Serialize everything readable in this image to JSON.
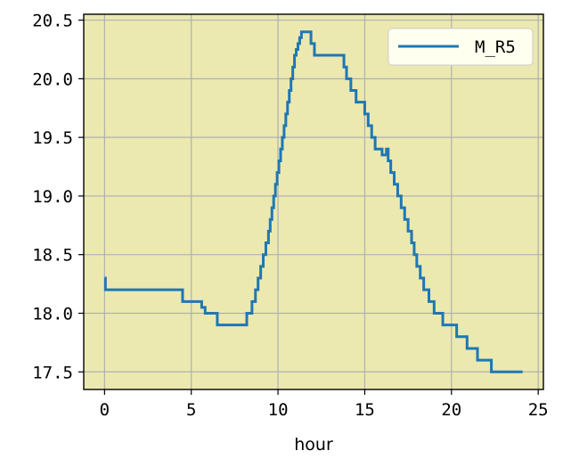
{
  "colors": {
    "plot_background": "#ebe9b0",
    "grid": "#b0b0b0",
    "line": "#1f77b4",
    "legend_background": "#fffff0"
  },
  "chart_data": {
    "type": "line",
    "title": "",
    "xlabel": "hour",
    "ylabel": "",
    "xlim": [
      -1.2,
      25.3
    ],
    "ylim": [
      17.35,
      20.55
    ],
    "xticks": [
      0,
      5,
      10,
      15,
      20,
      25
    ],
    "yticks": [
      17.5,
      18.0,
      18.5,
      19.0,
      19.5,
      20.0,
      20.5
    ],
    "ytick_labels": [
      "17.5",
      "18.0",
      "18.5",
      "19.0",
      "19.5",
      "20.0",
      "20.5"
    ],
    "grid": true,
    "legend_position": "top-right",
    "series": [
      {
        "name": "M_R5",
        "step": "post",
        "x": [
          0.0,
          0.05,
          0.15,
          4.5,
          5.6,
          5.8,
          6.5,
          8.2,
          8.5,
          8.7,
          8.85,
          9.0,
          9.15,
          9.3,
          9.45,
          9.55,
          9.65,
          9.75,
          9.85,
          9.95,
          10.05,
          10.15,
          10.25,
          10.35,
          10.45,
          10.55,
          10.65,
          10.75,
          10.85,
          10.95,
          11.05,
          11.15,
          11.25,
          11.35,
          11.5,
          11.9,
          12.1,
          13.8,
          13.95,
          14.2,
          14.5,
          15.0,
          15.2,
          15.4,
          15.6,
          16.0,
          16.25,
          16.35,
          16.5,
          16.7,
          16.9,
          17.1,
          17.3,
          17.5,
          17.7,
          17.85,
          18.0,
          18.2,
          18.4,
          18.7,
          19.0,
          19.5,
          20.3,
          20.9,
          21.5,
          22.3,
          23.2,
          24.1
        ],
        "values": [
          18.3,
          18.2,
          18.2,
          18.1,
          18.05,
          18.0,
          17.9,
          18.0,
          18.1,
          18.2,
          18.3,
          18.4,
          18.5,
          18.6,
          18.7,
          18.8,
          18.9,
          19.0,
          19.1,
          19.2,
          19.3,
          19.4,
          19.5,
          19.6,
          19.7,
          19.8,
          19.9,
          20.0,
          20.1,
          20.2,
          20.25,
          20.3,
          20.35,
          20.4,
          20.4,
          20.3,
          20.2,
          20.1,
          20.0,
          19.9,
          19.8,
          19.7,
          19.6,
          19.5,
          19.4,
          19.35,
          19.4,
          19.3,
          19.2,
          19.1,
          19.0,
          18.9,
          18.8,
          18.7,
          18.6,
          18.5,
          18.4,
          18.3,
          18.2,
          18.1,
          18.0,
          17.9,
          17.8,
          17.7,
          17.6,
          17.5,
          17.5,
          17.5
        ]
      }
    ]
  }
}
